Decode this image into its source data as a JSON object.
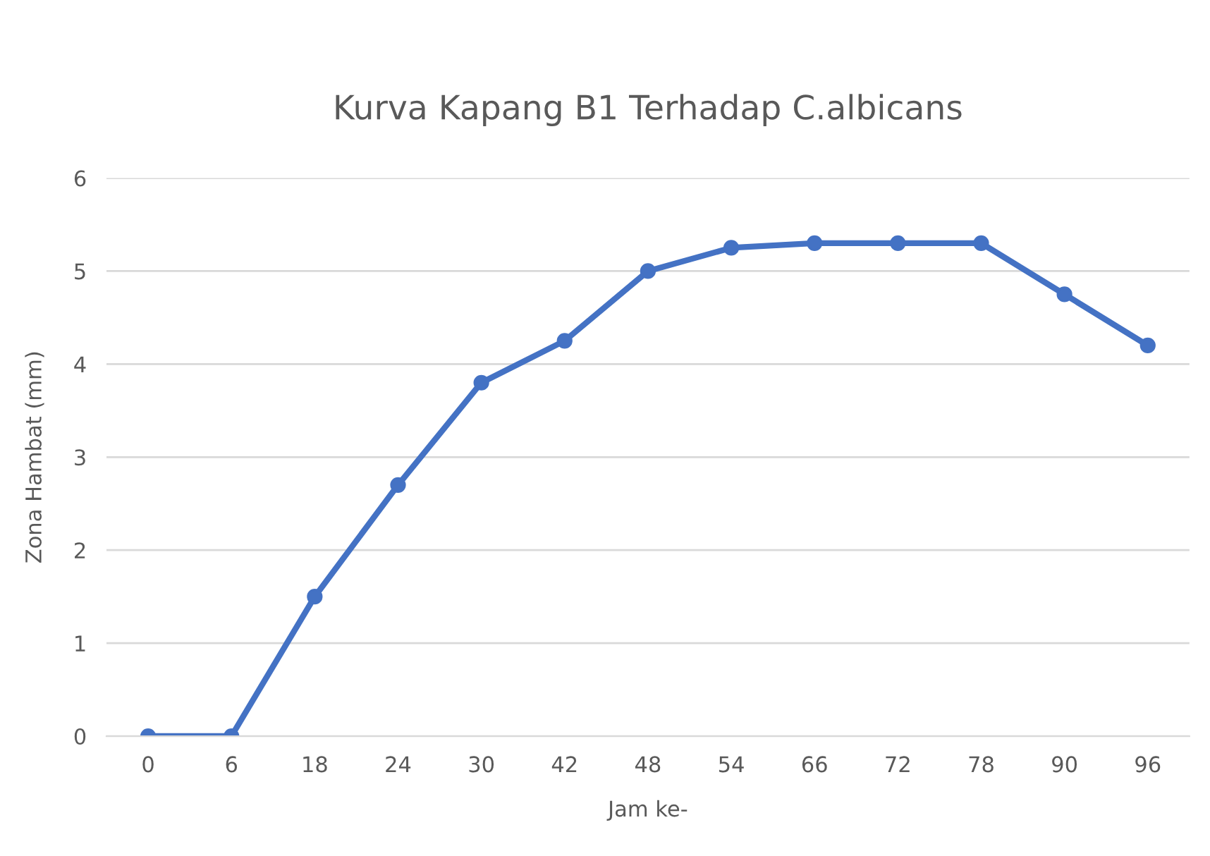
{
  "chart_data": {
    "type": "line",
    "title": "Kurva Kapang B1 Terhadap C.albicans",
    "xlabel": "Jam ke-",
    "ylabel": "Zona Hambat (mm)",
    "categories": [
      "0",
      "6",
      "18",
      "24",
      "30",
      "42",
      "48",
      "54",
      "66",
      "72",
      "78",
      "90",
      "96"
    ],
    "series": [
      {
        "color": "#4472c4",
        "values": [
          0,
          0,
          1.5,
          2.7,
          3.8,
          4.25,
          5.0,
          5.25,
          5.3,
          5.3,
          5.3,
          4.75,
          4.2
        ]
      }
    ],
    "ylim": [
      0,
      6
    ],
    "yticks": [
      0,
      1,
      2,
      3,
      4,
      5,
      6
    ],
    "grid": "y",
    "marker": "circle",
    "line_style": "solid"
  }
}
